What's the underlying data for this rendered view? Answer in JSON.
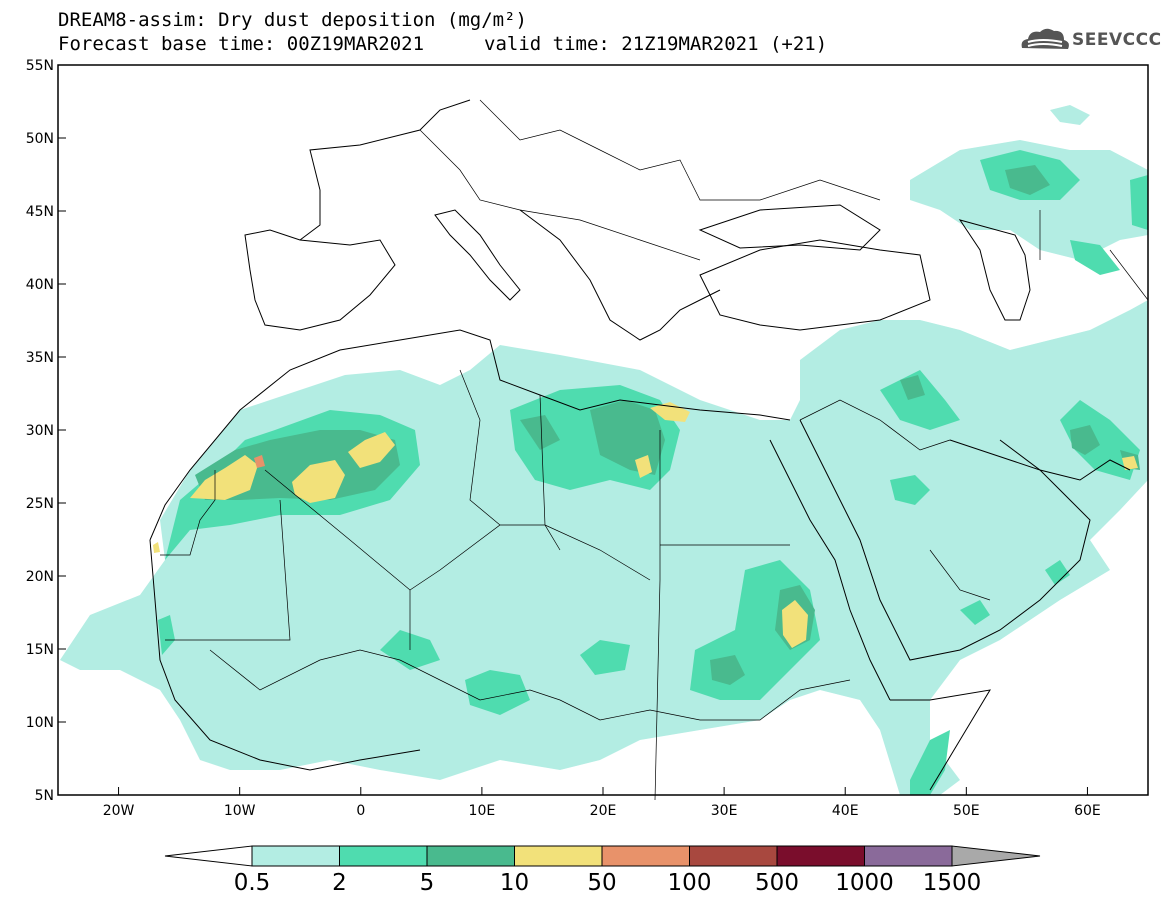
{
  "header": {
    "title_line1": "DREAM8-assim: Dry dust deposition (mg/m²)",
    "title_line2a": "Forecast base time: 00Z19MAR2021",
    "title_line2b": "valid time: 21Z19MAR2021 (+21)",
    "logo_text": "SEEVCCC",
    "logo_icon": "cloud-logo-icon"
  },
  "axes": {
    "x_ticks": [
      "20W",
      "10W",
      "0",
      "10E",
      "20E",
      "30E",
      "40E",
      "50E",
      "60E"
    ],
    "y_ticks": [
      "55N",
      "50N",
      "45N",
      "40N",
      "35N",
      "30N",
      "25N",
      "20N",
      "15N",
      "10N",
      "5N"
    ],
    "lon_range": [
      -25,
      65
    ],
    "lat_range": [
      5,
      55
    ]
  },
  "colorbar": {
    "labels": [
      "0.5",
      "2",
      "5",
      "10",
      "50",
      "100",
      "500",
      "1000",
      "1500"
    ],
    "colors": [
      "#b3ede3",
      "#4fdcaf",
      "#49ba8e",
      "#f2e17a",
      "#e8926a",
      "#a8483f",
      "#7a0d2c",
      "#8a6a9a",
      "#a9a9a9"
    ],
    "arrow_low": "#ffffff",
    "arrow_high": "#a9a9a9"
  },
  "legend_colors": {
    "light": "#b3ede3",
    "mid": "#4fdcaf",
    "dark": "#49ba8e",
    "yellow": "#f2e17a",
    "orange": "#e8926a"
  }
}
